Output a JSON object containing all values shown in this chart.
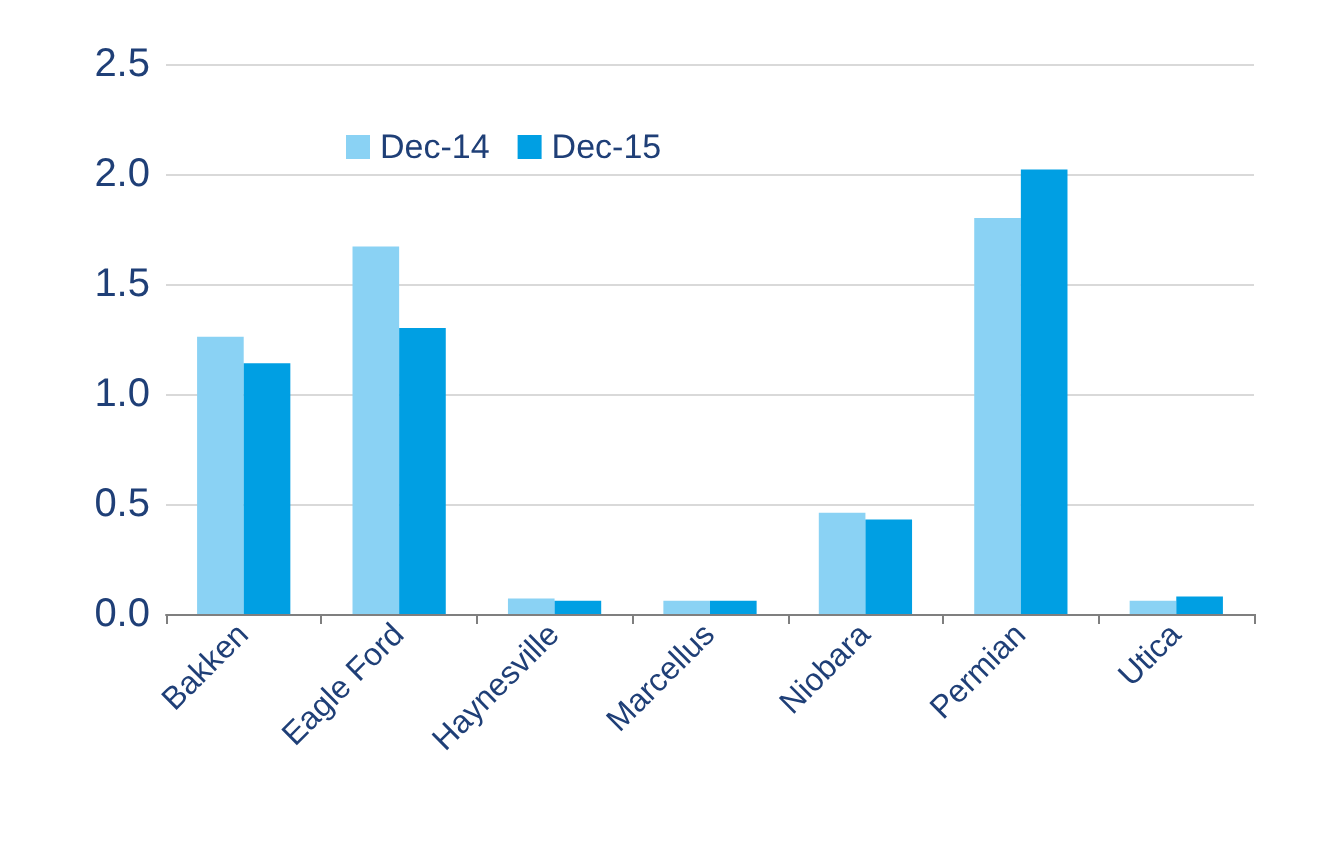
{
  "chart_data": {
    "type": "bar",
    "categories": [
      "Bakken",
      "Eagle Ford",
      "Haynesville",
      "Marcellus",
      "Niobara",
      "Permian",
      "Utica"
    ],
    "series": [
      {
        "name": "Dec-14",
        "color": "#8ad2f4",
        "values": [
          1.26,
          1.67,
          0.07,
          0.06,
          0.46,
          1.8,
          0.06
        ]
      },
      {
        "name": "Dec-15",
        "color": "#009fe3",
        "values": [
          1.14,
          1.3,
          0.06,
          0.06,
          0.43,
          2.02,
          0.08
        ]
      }
    ],
    "ylim": [
      0,
      2.5
    ],
    "yticks": [
      {
        "value": 0,
        "label": "0.0"
      },
      {
        "value": 0.5,
        "label": "0.5"
      },
      {
        "value": 1,
        "label": "1.0"
      },
      {
        "value": 1.5,
        "label": "1.5"
      },
      {
        "value": 2,
        "label": "2.0"
      },
      {
        "value": 2.5,
        "label": "2.5"
      }
    ],
    "grid": "y",
    "legend": "top left"
  }
}
